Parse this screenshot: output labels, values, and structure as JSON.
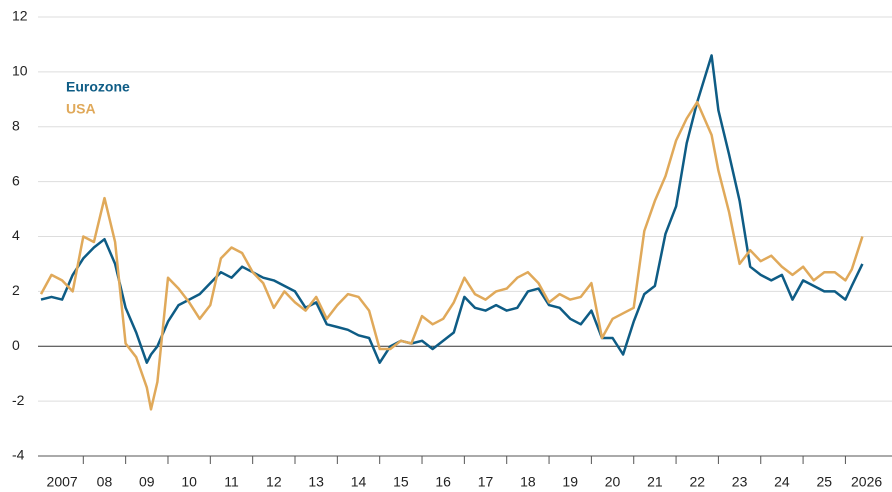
{
  "chart_data": {
    "type": "line",
    "x": [
      2007.0,
      2007.25,
      2007.5,
      2007.75,
      2008.0,
      2008.25,
      2008.5,
      2008.75,
      2009.0,
      2009.25,
      2009.5,
      2009.6,
      2009.75,
      2010.0,
      2010.25,
      2010.5,
      2010.75,
      2011.0,
      2011.25,
      2011.5,
      2011.75,
      2012.0,
      2012.25,
      2012.5,
      2012.75,
      2013.0,
      2013.25,
      2013.5,
      2013.75,
      2014.0,
      2014.25,
      2014.5,
      2014.75,
      2015.0,
      2015.25,
      2015.5,
      2015.75,
      2016.0,
      2016.25,
      2016.5,
      2016.75,
      2017.0,
      2017.25,
      2017.5,
      2017.75,
      2018.0,
      2018.25,
      2018.5,
      2018.75,
      2019.0,
      2019.25,
      2019.5,
      2019.75,
      2020.0,
      2020.25,
      2020.5,
      2020.75,
      2021.0,
      2021.25,
      2021.5,
      2021.75,
      2022.0,
      2022.25,
      2022.5,
      2022.84,
      2023.0,
      2023.25,
      2023.5,
      2023.75,
      2024.0,
      2024.25,
      2024.5,
      2024.75,
      2025.0,
      2025.25,
      2025.5,
      2025.75,
      2026.0,
      2026.15,
      2026.4
    ],
    "series": [
      {
        "name": "Eurozone",
        "color": "#0e5c85",
        "values": [
          1.7,
          1.8,
          1.7,
          2.6,
          3.2,
          3.6,
          3.9,
          3.0,
          1.4,
          0.5,
          -0.6,
          -0.3,
          0.0,
          0.9,
          1.5,
          1.7,
          1.9,
          2.3,
          2.7,
          2.5,
          2.9,
          2.7,
          2.5,
          2.4,
          2.2,
          2.0,
          1.4,
          1.6,
          0.8,
          0.7,
          0.6,
          0.4,
          0.3,
          -0.6,
          0.0,
          0.2,
          0.1,
          0.2,
          -0.1,
          0.2,
          0.5,
          1.8,
          1.4,
          1.3,
          1.5,
          1.3,
          1.4,
          2.0,
          2.1,
          1.5,
          1.4,
          1.0,
          0.8,
          1.3,
          0.3,
          0.3,
          -0.3,
          0.9,
          1.9,
          2.2,
          4.1,
          5.1,
          7.4,
          8.9,
          10.6,
          8.6,
          7.0,
          5.3,
          2.9,
          2.6,
          2.4,
          2.6,
          1.7,
          2.4,
          2.2,
          2.0,
          2.0,
          1.7,
          2.2,
          3.0
        ]
      },
      {
        "name": "USA",
        "color": "#e0a95a",
        "values": [
          1.9,
          2.6,
          2.4,
          2.0,
          4.0,
          3.8,
          5.4,
          3.8,
          0.1,
          -0.4,
          -1.5,
          -2.3,
          -1.3,
          2.5,
          2.1,
          1.6,
          1.0,
          1.5,
          3.2,
          3.6,
          3.4,
          2.7,
          2.3,
          1.4,
          2.0,
          1.6,
          1.3,
          1.8,
          1.0,
          1.5,
          1.9,
          1.8,
          1.3,
          -0.1,
          -0.1,
          0.2,
          0.1,
          1.1,
          0.8,
          1.0,
          1.6,
          2.5,
          1.9,
          1.7,
          2.0,
          2.1,
          2.5,
          2.7,
          2.3,
          1.6,
          1.9,
          1.7,
          1.8,
          2.3,
          0.3,
          1.0,
          1.2,
          1.4,
          4.2,
          5.3,
          6.2,
          7.5,
          8.3,
          8.9,
          7.7,
          6.4,
          4.9,
          3.0,
          3.5,
          3.1,
          3.3,
          2.9,
          2.6,
          2.9,
          2.4,
          2.7,
          2.7,
          2.4,
          2.8,
          4.0
        ]
      }
    ],
    "xlim": [
      2006.93,
      2027.1
    ],
    "xticks": [
      {
        "value": 2007.5,
        "label": "2007"
      },
      {
        "value": 2008.5,
        "label": "08"
      },
      {
        "value": 2009.5,
        "label": "09"
      },
      {
        "value": 2010.5,
        "label": "10"
      },
      {
        "value": 2011.5,
        "label": "11"
      },
      {
        "value": 2012.5,
        "label": "12"
      },
      {
        "value": 2013.5,
        "label": "13"
      },
      {
        "value": 2014.5,
        "label": "14"
      },
      {
        "value": 2015.5,
        "label": "15"
      },
      {
        "value": 2016.5,
        "label": "16"
      },
      {
        "value": 2017.5,
        "label": "17"
      },
      {
        "value": 2018.5,
        "label": "18"
      },
      {
        "value": 2019.5,
        "label": "19"
      },
      {
        "value": 2020.5,
        "label": "20"
      },
      {
        "value": 2021.5,
        "label": "21"
      },
      {
        "value": 2022.5,
        "label": "22"
      },
      {
        "value": 2023.5,
        "label": "23"
      },
      {
        "value": 2024.5,
        "label": "24"
      },
      {
        "value": 2025.5,
        "label": "25"
      },
      {
        "value": 2026.5,
        "label": "2026"
      }
    ],
    "xminor": [
      2008,
      2009,
      2010,
      2011,
      2012,
      2013,
      2014,
      2015,
      2016,
      2017,
      2018,
      2019,
      2020,
      2021,
      2022,
      2023,
      2024,
      2025,
      2026
    ],
    "ylim": [
      -4,
      12
    ],
    "yticks": [
      -4,
      -2,
      0,
      2,
      4,
      6,
      8,
      10,
      12
    ],
    "grid": true
  }
}
